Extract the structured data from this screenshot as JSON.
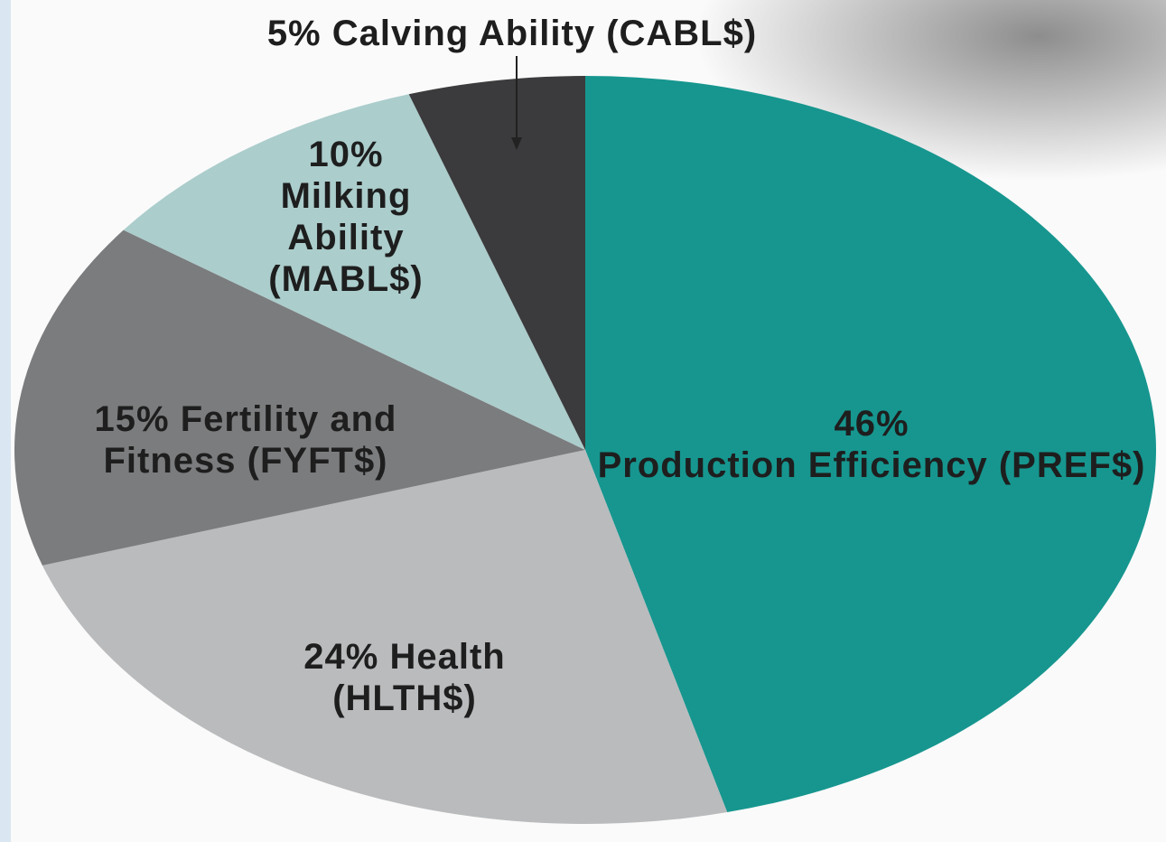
{
  "chart_data": {
    "type": "pie",
    "categories": [
      "Production Efficiency (PREF$)",
      "Health (HLTH$)",
      "Fertility and Fitness (FYFT$)",
      "Milking Ability (MABL$)",
      "Calving Ability (CABL$)"
    ],
    "values": [
      46,
      24,
      15,
      10,
      5
    ],
    "value_labels": [
      "46%",
      "24%",
      "15%",
      "10%",
      "5%"
    ],
    "colors": [
      "#16968f",
      "#b9bbbd",
      "#7b7c7e",
      "#abcdcc",
      "#3b3a3c"
    ]
  }
}
